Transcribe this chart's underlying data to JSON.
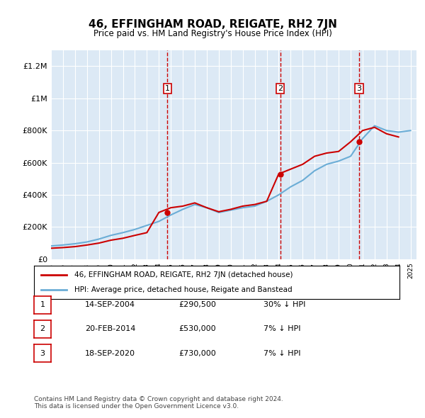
{
  "title": "46, EFFINGHAM ROAD, REIGATE, RH2 7JN",
  "subtitle": "Price paid vs. HM Land Registry's House Price Index (HPI)",
  "background_color": "#dce9f5",
  "plot_bg_color": "#dce9f5",
  "ylim": [
    0,
    1300000
  ],
  "yticks": [
    0,
    200000,
    400000,
    600000,
    800000,
    1000000,
    1200000
  ],
  "ytick_labels": [
    "£0",
    "£200K",
    "£400K",
    "£600K",
    "£800K",
    "£1M",
    "£1.2M"
  ],
  "hpi_color": "#6badd6",
  "price_color": "#cc0000",
  "vline_color": "#cc0000",
  "vline_style": "--",
  "sale_dates_num": [
    2004.71,
    2014.13,
    2020.72
  ],
  "sale_prices": [
    290500,
    530000,
    730000
  ],
  "sale_labels": [
    "1",
    "2",
    "3"
  ],
  "sale_label_dates": [
    2004.71,
    2014.13,
    2020.72
  ],
  "legend_line1": "46, EFFINGHAM ROAD, REIGATE, RH2 7JN (detached house)",
  "legend_line2": "HPI: Average price, detached house, Reigate and Banstead",
  "table_data": [
    [
      "1",
      "14-SEP-2004",
      "£290,500",
      "30% ↓ HPI"
    ],
    [
      "2",
      "20-FEB-2014",
      "£530,000",
      "7% ↓ HPI"
    ],
    [
      "3",
      "18-SEP-2020",
      "£730,000",
      "7% ↓ HPI"
    ]
  ],
  "footnote": "Contains HM Land Registry data © Crown copyright and database right 2024.\nThis data is licensed under the Open Government Licence v3.0.",
  "xmin": 1995,
  "xmax": 2025.5,
  "hpi_years": [
    1995,
    1996,
    1997,
    1998,
    1999,
    2000,
    2001,
    2002,
    2003,
    2004,
    2005,
    2006,
    2007,
    2008,
    2009,
    2010,
    2011,
    2012,
    2013,
    2014,
    2015,
    2016,
    2017,
    2018,
    2019,
    2020,
    2021,
    2022,
    2023,
    2024,
    2025
  ],
  "hpi_values": [
    82000,
    88000,
    96000,
    107000,
    125000,
    148000,
    165000,
    185000,
    210000,
    235000,
    275000,
    310000,
    340000,
    320000,
    290000,
    305000,
    320000,
    330000,
    360000,
    400000,
    450000,
    490000,
    550000,
    590000,
    610000,
    640000,
    750000,
    830000,
    800000,
    790000,
    800000
  ],
  "price_years": [
    1995,
    1996,
    1997,
    1998,
    1999,
    2000,
    2001,
    2002,
    2003,
    2004,
    2005,
    2006,
    2007,
    2008,
    2009,
    2010,
    2011,
    2012,
    2013,
    2014,
    2015,
    2016,
    2017,
    2018,
    2019,
    2020,
    2021,
    2022,
    2023,
    2024
  ],
  "price_values": [
    68000,
    72000,
    78000,
    88000,
    100000,
    118000,
    130000,
    148000,
    165000,
    290500,
    320000,
    330000,
    350000,
    320000,
    295000,
    310000,
    330000,
    340000,
    360000,
    530000,
    560000,
    590000,
    640000,
    660000,
    670000,
    730000,
    800000,
    820000,
    780000,
    760000
  ]
}
